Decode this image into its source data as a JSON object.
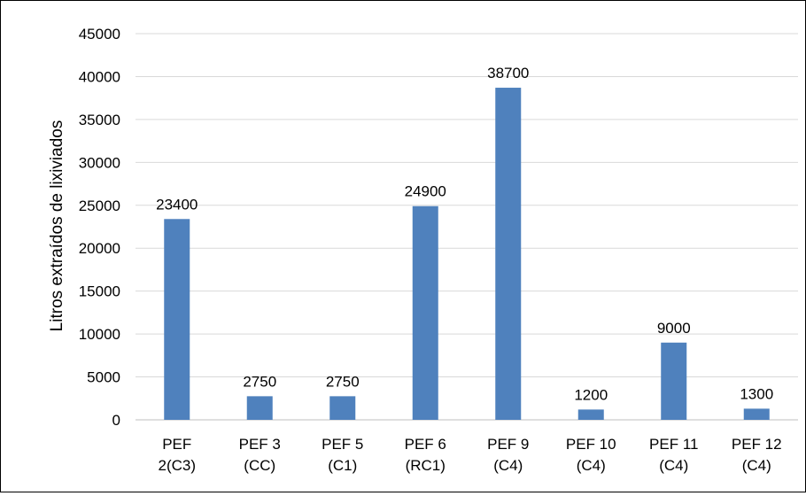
{
  "chart_data": {
    "type": "bar",
    "title": "",
    "xlabel": "",
    "ylabel": "Litros extraídos de lixiviados",
    "ylim": [
      0,
      45000
    ],
    "y_ticks": [
      0,
      5000,
      10000,
      15000,
      20000,
      25000,
      30000,
      35000,
      40000,
      45000
    ],
    "grid": true,
    "legend": "none",
    "bar_color": "#4f81bd",
    "grid_color": "#d9d9d9",
    "categories": [
      {
        "line1": "PEF",
        "line2": "2(C3)"
      },
      {
        "line1": "PEF 3",
        "line2": "(CC)"
      },
      {
        "line1": "PEF 5",
        "line2": "(C1)"
      },
      {
        "line1": "PEF 6",
        "line2": "(RC1)"
      },
      {
        "line1": "PEF 9",
        "line2": "(C4)"
      },
      {
        "line1": "PEF 10",
        "line2": "(C4)"
      },
      {
        "line1": "PEF 11",
        "line2": "(C4)"
      },
      {
        "line1": "PEF 12",
        "line2": "(C4)"
      }
    ],
    "values": [
      23400,
      2750,
      2750,
      24900,
      38700,
      1200,
      9000,
      1300
    ],
    "data_labels": [
      "23400",
      "2750",
      "2750",
      "24900",
      "38700",
      "1200",
      "9000",
      "1300"
    ]
  }
}
